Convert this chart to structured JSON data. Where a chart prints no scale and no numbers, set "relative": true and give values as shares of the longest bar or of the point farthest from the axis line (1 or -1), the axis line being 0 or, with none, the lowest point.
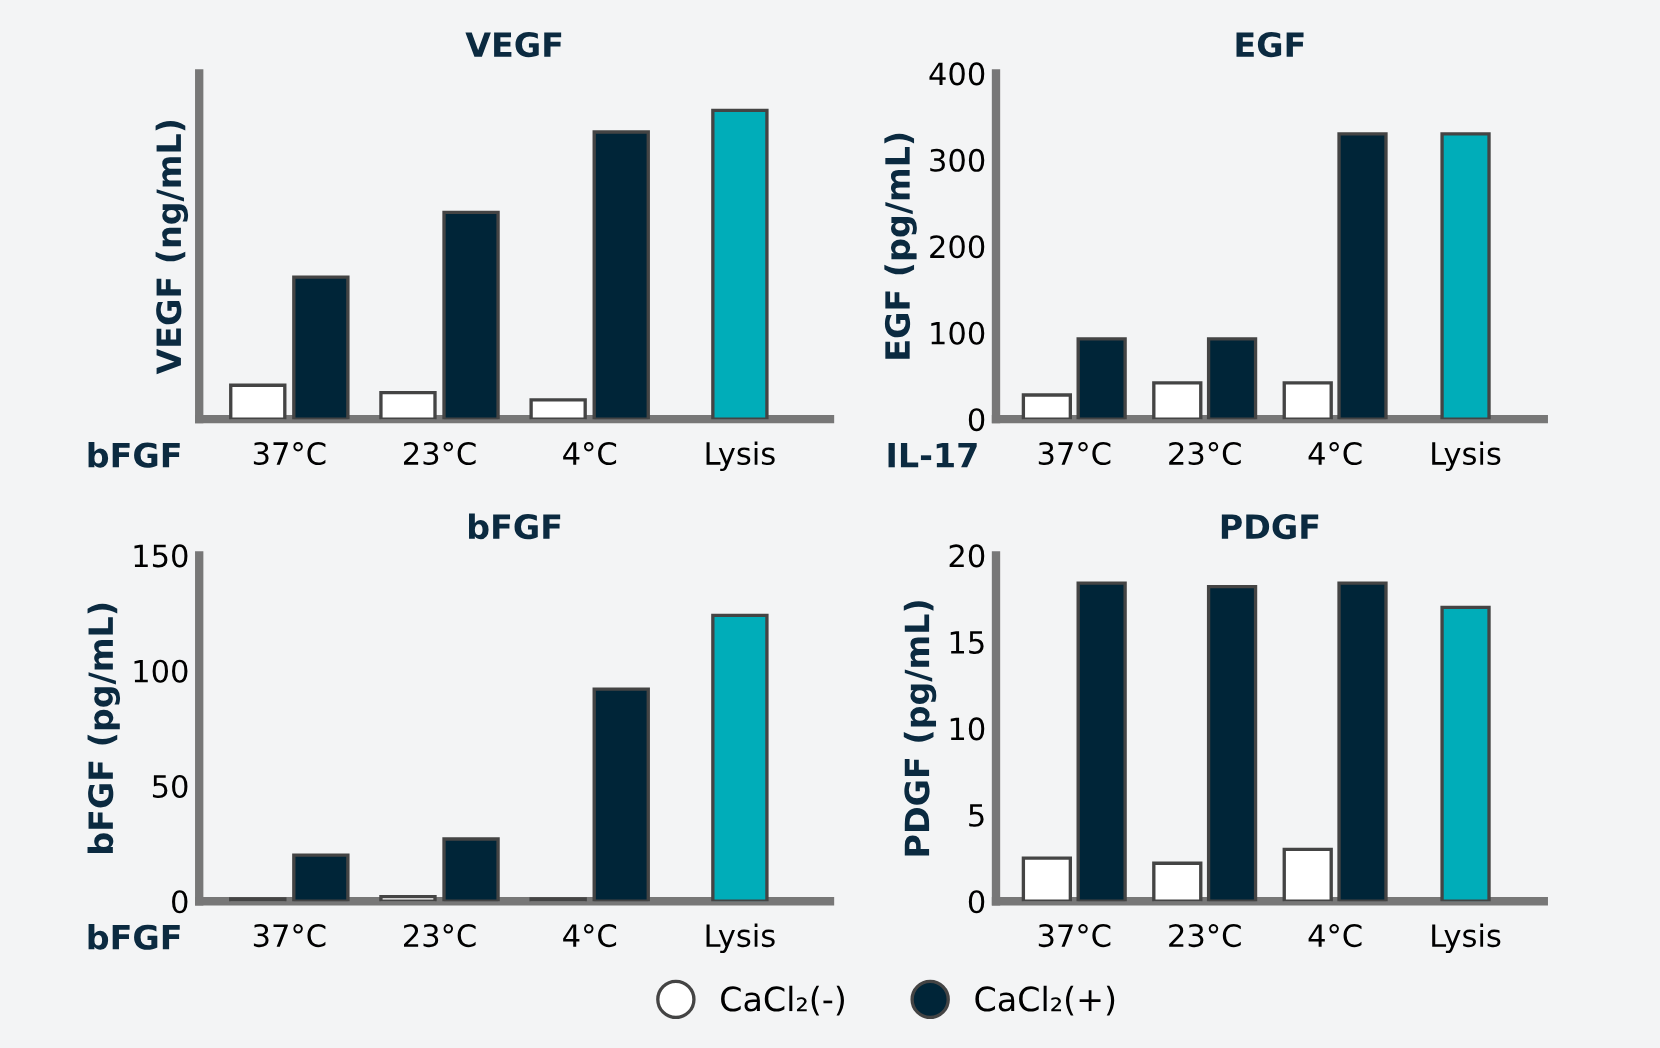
{
  "chart_data": [
    {
      "type": "bar",
      "title": "VEGF",
      "ylabel": "VEGF (ng/mL)",
      "relative": true,
      "categories": [
        "37°C",
        "23°C",
        "4°C",
        "Lysis"
      ],
      "annotations": [
        "bFGF"
      ],
      "grid": false,
      "series": [
        {
          "color": "#ffffff",
          "values": [
            0.11,
            0.086,
            0.0625,
            null
          ]
        },
        {
          "color": "#002538",
          "values": [
            0.46,
            0.67,
            0.93,
            null
          ]
        },
        {
          "color": "#00adb9",
          "values": [
            null,
            null,
            null,
            1
          ]
        }
      ]
    },
    {
      "type": "bar",
      "title": "EGF",
      "ylabel": "EGF (pg/mL)",
      "categories": [
        "37°C",
        "23°C",
        "4°C",
        "Lysis"
      ],
      "annotations": [
        "IL-17"
      ],
      "ylim": [
        0,
        400
      ],
      "yticks": [
        0,
        100,
        200,
        300,
        400
      ],
      "grid": false,
      "series": [
        {
          "color": "#ffffff",
          "values": [
            28,
            42,
            42,
            null
          ]
        },
        {
          "color": "#002538",
          "values": [
            93,
            93,
            330,
            null
          ]
        },
        {
          "color": "#00adb9",
          "values": [
            null,
            null,
            null,
            330
          ]
        }
      ]
    },
    {
      "type": "bar",
      "title": "bFGF",
      "ylabel": "bFGF (pg/mL)",
      "categories": [
        "37°C",
        "23°C",
        "4°C",
        "Lysis"
      ],
      "annotations": [
        "bFGF"
      ],
      "ylim": [
        0,
        150
      ],
      "yticks": [
        0,
        50,
        100,
        150
      ],
      "grid": false,
      "series": [
        {
          "color": "#ffffff",
          "values": [
            1,
            2,
            1,
            null
          ]
        },
        {
          "color": "#002538",
          "values": [
            20,
            27,
            92,
            null
          ]
        },
        {
          "color": "#00adb9",
          "values": [
            null,
            null,
            null,
            124
          ]
        }
      ]
    },
    {
      "type": "bar",
      "title": "PDGF",
      "ylabel": "PDGF (pg/mL)",
      "categories": [
        "37°C",
        "23°C",
        "4°C",
        "Lysis"
      ],
      "ylim": [
        0,
        20
      ],
      "yticks": [
        0,
        5,
        10,
        15,
        20
      ],
      "grid": false,
      "legend": "bottom",
      "series": [
        {
          "name": "CaCl₂(-)",
          "color": "#ffffff",
          "values": [
            2.5,
            2.2,
            3.0,
            null
          ]
        },
        {
          "name": "CaCl₂(+)",
          "color": "#002538",
          "values": [
            18.4,
            18.2,
            18.4,
            null
          ]
        },
        {
          "color": "#00adb9",
          "values": [
            null,
            null,
            null,
            17.0
          ]
        }
      ]
    }
  ]
}
